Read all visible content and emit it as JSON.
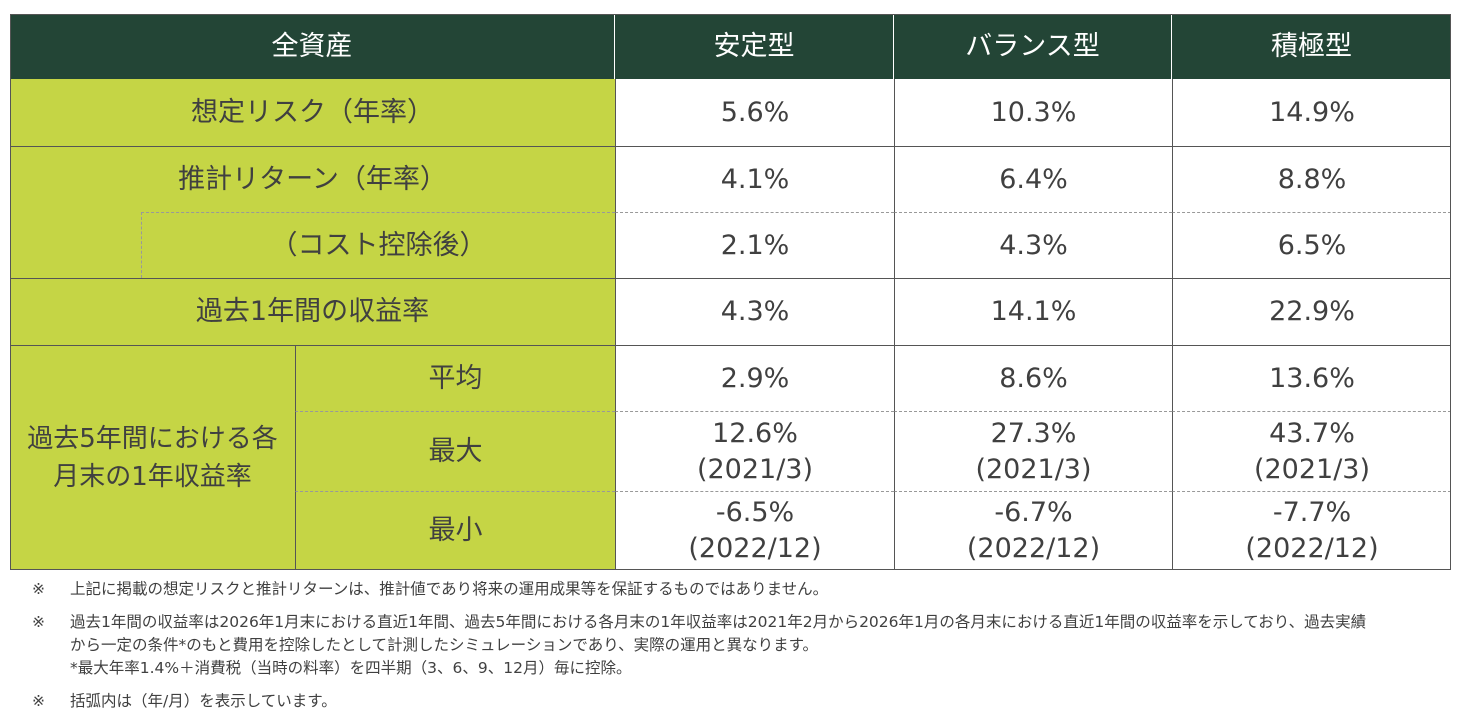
{
  "header": {
    "label": "全資産",
    "cols": [
      "安定型",
      "バランス型",
      "積極型"
    ]
  },
  "rows": {
    "risk": {
      "label": "想定リスク（年率）",
      "values": [
        "5.6%",
        "10.3%",
        "14.9%"
      ]
    },
    "ret": {
      "label": "推計リターン（年率）",
      "values": [
        "4.1%",
        "6.4%",
        "8.8%"
      ]
    },
    "cost": {
      "label": "（コスト控除後）",
      "values": [
        "2.1%",
        "4.3%",
        "6.5%"
      ]
    },
    "past1": {
      "label": "過去1年間の収益率",
      "values": [
        "4.3%",
        "14.1%",
        "22.9%"
      ]
    },
    "rolling_label": "過去5年間における各月末の1年収益率",
    "avg": {
      "label": "平均",
      "values": [
        "2.9%",
        "8.6%",
        "13.6%"
      ]
    },
    "max": {
      "label": "最大",
      "values": [
        "12.6%",
        "27.3%",
        "43.7%"
      ],
      "dates": [
        "(2021/3)",
        "(2021/3)",
        "(2021/3)"
      ]
    },
    "min": {
      "label": "最小",
      "values": [
        "-6.5%",
        "-6.7%",
        "-7.7%"
      ],
      "dates": [
        "(2022/12)",
        "(2022/12)",
        "(2022/12)"
      ]
    }
  },
  "notes": [
    {
      "mark": "※",
      "text": "上記に掲載の想定リスクと推計リターンは、推計値であり将来の運用成果等を保証するものではありません。"
    },
    {
      "mark": "※",
      "text": "過去1年間の収益率は2026年1月末における直近1年間、過去5年間における各月末の1年収益率は2021年2月から2026年1月の各月末における直近1年間の収益率を示しており、過去実績から一定の条件*のもと費用を控除したとして計測したシミュレーションであり、実際の運用と異なります。",
      "sub": "*最大年率1.4%＋消費税（当時の料率）を四半期（3、6、9、12月）毎に控除。"
    },
    {
      "mark": "※",
      "text": "括弧内は（年/月）を表示しています。"
    }
  ],
  "colors": {
    "header": "#234536",
    "label_bg": "#c5d545"
  }
}
